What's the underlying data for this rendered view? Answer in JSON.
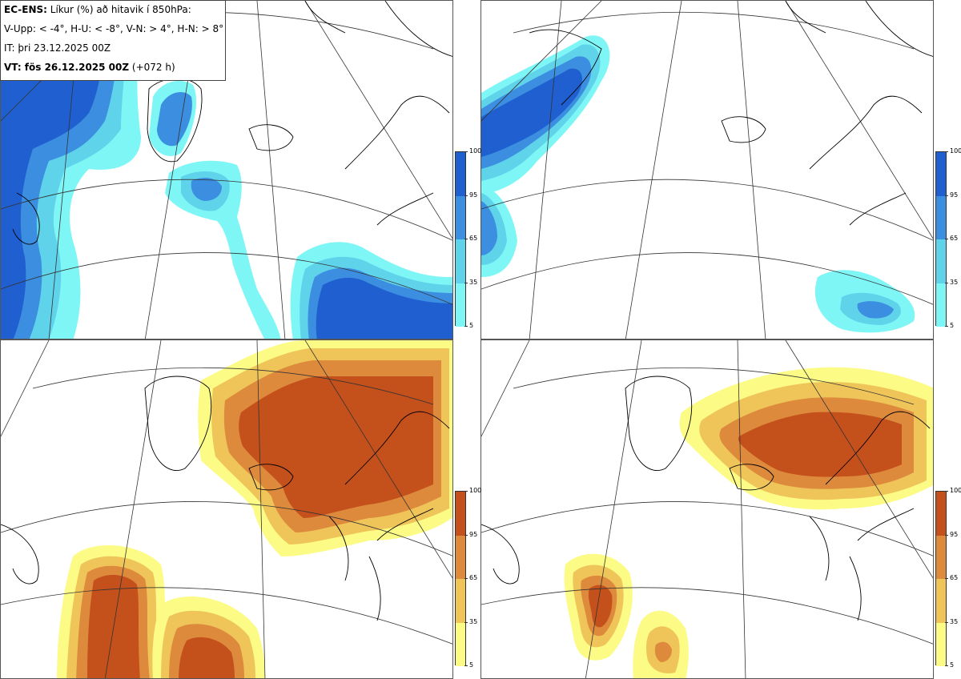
{
  "header": {
    "model": "EC-ENS:",
    "title": "Líkur (%) að hitavik í 850hPa:",
    "thresholds": "V-Upp: < -4°, H-U: < -8°, V-N: > 4°, H-N: > 8°",
    "init_time": "IT: þri 23.12.2025 00Z",
    "valid_label": "VT: fös 26.12.2025 00Z",
    "lead_time": "(+072 h)"
  },
  "panels": [
    {
      "id": "V-Upp",
      "threshold": "< -4°",
      "palette": "blue"
    },
    {
      "id": "H-U",
      "threshold": "< -8°",
      "palette": "blue"
    },
    {
      "id": "V-N",
      "threshold": "> 4°",
      "palette": "orange"
    },
    {
      "id": "H-N",
      "threshold": "> 8°",
      "palette": "orange"
    }
  ],
  "colorbar_blue": {
    "ticks": [
      "100",
      "95",
      "65",
      "35",
      "5"
    ],
    "colors": [
      "#1f5fcf",
      "#3c8fe0",
      "#5fd3ea",
      "#7ff6f6"
    ]
  },
  "colorbar_orange": {
    "ticks": [
      "100",
      "95",
      "65",
      "35",
      "5"
    ],
    "colors": [
      "#c4501c",
      "#dd8a3c",
      "#efc55a",
      "#fbfb86"
    ]
  }
}
